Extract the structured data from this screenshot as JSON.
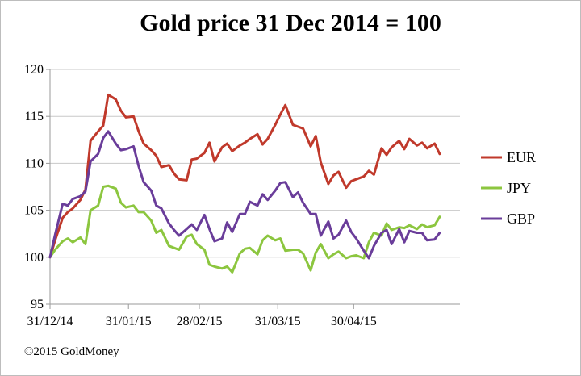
{
  "chart_data": {
    "type": "line",
    "title": "Gold price 31 Dec 2014 = 100",
    "credit": "©2015 GoldMoney",
    "xlabel": "",
    "ylabel": "",
    "x_tick_labels": [
      "31/12/14",
      "31/01/15",
      "28/02/15",
      "31/03/15",
      "30/04/15"
    ],
    "x_tick_dates": [
      "2014-12-31",
      "2015-01-31",
      "2015-02-28",
      "2015-03-31",
      "2015-04-30"
    ],
    "xlim": [
      "2014-12-31",
      "2015-06-11"
    ],
    "y_ticks": [
      95,
      100,
      105,
      110,
      115,
      120
    ],
    "ylim": [
      95,
      120
    ],
    "grid": "horizontal",
    "legend_position": "right",
    "series": [
      {
        "name": "EUR",
        "color": "#c0392b",
        "points": [
          [
            "2014-12-31",
            100.0
          ],
          [
            "2015-01-02",
            101.8
          ],
          [
            "2015-01-05",
            104.2
          ],
          [
            "2015-01-07",
            104.8
          ],
          [
            "2015-01-09",
            105.2
          ],
          [
            "2015-01-12",
            106.1
          ],
          [
            "2015-01-14",
            107.2
          ],
          [
            "2015-01-16",
            112.4
          ],
          [
            "2015-01-19",
            113.4
          ],
          [
            "2015-01-21",
            114.0
          ],
          [
            "2015-01-23",
            117.3
          ],
          [
            "2015-01-26",
            116.8
          ],
          [
            "2015-01-28",
            115.6
          ],
          [
            "2015-01-30",
            114.9
          ],
          [
            "2015-02-02",
            115.0
          ],
          [
            "2015-02-04",
            113.4
          ],
          [
            "2015-02-06",
            112.1
          ],
          [
            "2015-02-09",
            111.4
          ],
          [
            "2015-02-11",
            110.8
          ],
          [
            "2015-02-13",
            109.6
          ],
          [
            "2015-02-16",
            109.8
          ],
          [
            "2015-02-18",
            108.9
          ],
          [
            "2015-02-20",
            108.3
          ],
          [
            "2015-02-23",
            108.2
          ],
          [
            "2015-02-25",
            110.4
          ],
          [
            "2015-02-27",
            110.5
          ],
          [
            "2015-03-02",
            111.1
          ],
          [
            "2015-03-04",
            112.2
          ],
          [
            "2015-03-06",
            110.2
          ],
          [
            "2015-03-09",
            111.7
          ],
          [
            "2015-03-11",
            112.1
          ],
          [
            "2015-03-13",
            111.3
          ],
          [
            "2015-03-16",
            111.9
          ],
          [
            "2015-03-18",
            112.2
          ],
          [
            "2015-03-20",
            112.6
          ],
          [
            "2015-03-23",
            113.1
          ],
          [
            "2015-03-25",
            112.0
          ],
          [
            "2015-03-27",
            112.6
          ],
          [
            "2015-03-30",
            114.1
          ],
          [
            "2015-04-01",
            115.2
          ],
          [
            "2015-04-03",
            116.2
          ],
          [
            "2015-04-06",
            114.1
          ],
          [
            "2015-04-08",
            113.9
          ],
          [
            "2015-04-10",
            113.7
          ],
          [
            "2015-04-13",
            111.8
          ],
          [
            "2015-04-15",
            112.9
          ],
          [
            "2015-04-17",
            110.1
          ],
          [
            "2015-04-20",
            107.8
          ],
          [
            "2015-04-22",
            108.7
          ],
          [
            "2015-04-24",
            109.1
          ],
          [
            "2015-04-27",
            107.4
          ],
          [
            "2015-04-29",
            108.1
          ],
          [
            "2015-05-01",
            108.3
          ],
          [
            "2015-05-04",
            108.6
          ],
          [
            "2015-05-06",
            109.2
          ],
          [
            "2015-05-08",
            108.8
          ],
          [
            "2015-05-11",
            111.6
          ],
          [
            "2015-05-13",
            110.9
          ],
          [
            "2015-05-15",
            111.7
          ],
          [
            "2015-05-18",
            112.4
          ],
          [
            "2015-05-20",
            111.5
          ],
          [
            "2015-05-22",
            112.6
          ],
          [
            "2015-05-25",
            111.9
          ],
          [
            "2015-05-27",
            112.2
          ],
          [
            "2015-05-29",
            111.6
          ],
          [
            "2015-06-01",
            112.1
          ],
          [
            "2015-06-03",
            111.0
          ]
        ]
      },
      {
        "name": "JPY",
        "color": "#8cc63f",
        "points": [
          [
            "2014-12-31",
            100.0
          ],
          [
            "2015-01-02",
            100.8
          ],
          [
            "2015-01-05",
            101.7
          ],
          [
            "2015-01-07",
            102.0
          ],
          [
            "2015-01-09",
            101.6
          ],
          [
            "2015-01-12",
            102.1
          ],
          [
            "2015-01-14",
            101.4
          ],
          [
            "2015-01-16",
            105.0
          ],
          [
            "2015-01-19",
            105.5
          ],
          [
            "2015-01-21",
            107.5
          ],
          [
            "2015-01-23",
            107.6
          ],
          [
            "2015-01-26",
            107.3
          ],
          [
            "2015-01-28",
            105.8
          ],
          [
            "2015-01-30",
            105.3
          ],
          [
            "2015-02-02",
            105.5
          ],
          [
            "2015-02-04",
            104.8
          ],
          [
            "2015-02-06",
            104.8
          ],
          [
            "2015-02-09",
            103.9
          ],
          [
            "2015-02-11",
            102.6
          ],
          [
            "2015-02-13",
            102.9
          ],
          [
            "2015-02-16",
            101.2
          ],
          [
            "2015-02-18",
            101.0
          ],
          [
            "2015-02-20",
            100.8
          ],
          [
            "2015-02-23",
            102.2
          ],
          [
            "2015-02-25",
            102.4
          ],
          [
            "2015-02-27",
            101.4
          ],
          [
            "2015-03-02",
            100.8
          ],
          [
            "2015-03-04",
            99.2
          ],
          [
            "2015-03-06",
            99.0
          ],
          [
            "2015-03-09",
            98.8
          ],
          [
            "2015-03-11",
            99.0
          ],
          [
            "2015-03-13",
            98.4
          ],
          [
            "2015-03-16",
            100.4
          ],
          [
            "2015-03-18",
            100.9
          ],
          [
            "2015-03-20",
            101.0
          ],
          [
            "2015-03-23",
            100.3
          ],
          [
            "2015-03-25",
            101.8
          ],
          [
            "2015-03-27",
            102.3
          ],
          [
            "2015-03-30",
            101.8
          ],
          [
            "2015-04-01",
            102.0
          ],
          [
            "2015-04-03",
            100.7
          ],
          [
            "2015-04-06",
            100.8
          ],
          [
            "2015-04-08",
            100.8
          ],
          [
            "2015-04-10",
            100.4
          ],
          [
            "2015-04-13",
            98.6
          ],
          [
            "2015-04-15",
            100.5
          ],
          [
            "2015-04-17",
            101.4
          ],
          [
            "2015-04-20",
            99.9
          ],
          [
            "2015-04-22",
            100.3
          ],
          [
            "2015-04-24",
            100.6
          ],
          [
            "2015-04-27",
            99.9
          ],
          [
            "2015-04-29",
            100.1
          ],
          [
            "2015-05-01",
            100.2
          ],
          [
            "2015-05-04",
            99.9
          ],
          [
            "2015-05-06",
            101.6
          ],
          [
            "2015-05-08",
            102.6
          ],
          [
            "2015-05-11",
            102.3
          ],
          [
            "2015-05-13",
            103.6
          ],
          [
            "2015-05-15",
            102.9
          ],
          [
            "2015-05-18",
            103.2
          ],
          [
            "2015-05-20",
            103.1
          ],
          [
            "2015-05-22",
            103.4
          ],
          [
            "2015-05-25",
            103.0
          ],
          [
            "2015-05-27",
            103.5
          ],
          [
            "2015-05-29",
            103.2
          ],
          [
            "2015-06-01",
            103.4
          ],
          [
            "2015-06-03",
            104.3
          ]
        ]
      },
      {
        "name": "GBP",
        "color": "#6a3d9a",
        "points": [
          [
            "2014-12-31",
            100.0
          ],
          [
            "2015-01-02",
            102.4
          ],
          [
            "2015-01-05",
            105.7
          ],
          [
            "2015-01-07",
            105.5
          ],
          [
            "2015-01-09",
            106.2
          ],
          [
            "2015-01-12",
            106.5
          ],
          [
            "2015-01-14",
            107.0
          ],
          [
            "2015-01-16",
            110.2
          ],
          [
            "2015-01-19",
            111.0
          ],
          [
            "2015-01-21",
            112.7
          ],
          [
            "2015-01-23",
            113.4
          ],
          [
            "2015-01-26",
            112.1
          ],
          [
            "2015-01-28",
            111.4
          ],
          [
            "2015-01-30",
            111.5
          ],
          [
            "2015-02-02",
            111.8
          ],
          [
            "2015-02-04",
            109.7
          ],
          [
            "2015-02-06",
            108.0
          ],
          [
            "2015-02-09",
            107.1
          ],
          [
            "2015-02-11",
            105.5
          ],
          [
            "2015-02-13",
            105.2
          ],
          [
            "2015-02-16",
            103.6
          ],
          [
            "2015-02-18",
            102.9
          ],
          [
            "2015-02-20",
            102.3
          ],
          [
            "2015-02-23",
            103.0
          ],
          [
            "2015-02-25",
            103.5
          ],
          [
            "2015-02-27",
            102.9
          ],
          [
            "2015-03-02",
            104.5
          ],
          [
            "2015-03-04",
            103.0
          ],
          [
            "2015-03-06",
            101.7
          ],
          [
            "2015-03-09",
            102.0
          ],
          [
            "2015-03-11",
            103.7
          ],
          [
            "2015-03-13",
            102.7
          ],
          [
            "2015-03-16",
            104.6
          ],
          [
            "2015-03-18",
            104.6
          ],
          [
            "2015-03-20",
            105.9
          ],
          [
            "2015-03-23",
            105.5
          ],
          [
            "2015-03-25",
            106.7
          ],
          [
            "2015-03-27",
            106.1
          ],
          [
            "2015-03-30",
            107.1
          ],
          [
            "2015-04-01",
            107.9
          ],
          [
            "2015-04-03",
            108.0
          ],
          [
            "2015-04-06",
            106.4
          ],
          [
            "2015-04-08",
            106.9
          ],
          [
            "2015-04-10",
            105.8
          ],
          [
            "2015-04-13",
            104.6
          ],
          [
            "2015-04-15",
            104.6
          ],
          [
            "2015-04-17",
            102.3
          ],
          [
            "2015-04-20",
            103.8
          ],
          [
            "2015-04-22",
            102.0
          ],
          [
            "2015-04-24",
            102.4
          ],
          [
            "2015-04-27",
            103.9
          ],
          [
            "2015-04-29",
            102.7
          ],
          [
            "2015-05-01",
            102.0
          ],
          [
            "2015-05-04",
            100.7
          ],
          [
            "2015-05-06",
            99.9
          ],
          [
            "2015-05-08",
            101.2
          ],
          [
            "2015-05-11",
            102.6
          ],
          [
            "2015-05-13",
            102.9
          ],
          [
            "2015-05-15",
            101.4
          ],
          [
            "2015-05-18",
            103.0
          ],
          [
            "2015-05-20",
            101.6
          ],
          [
            "2015-05-22",
            102.8
          ],
          [
            "2015-05-25",
            102.6
          ],
          [
            "2015-05-27",
            102.6
          ],
          [
            "2015-05-29",
            101.8
          ],
          [
            "2015-06-01",
            101.9
          ],
          [
            "2015-06-03",
            102.6
          ]
        ]
      }
    ]
  }
}
